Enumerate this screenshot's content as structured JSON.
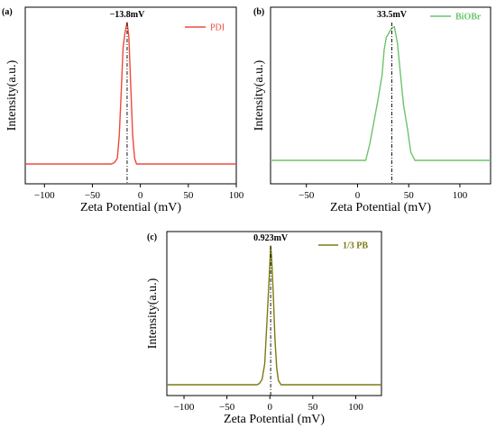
{
  "chart_data": [
    {
      "type": "line",
      "panel_label": "(a)",
      "xlabel": "Zeta Potential (mV)",
      "ylabel": "Intensity(a.u.)",
      "xlim": [
        -120,
        100
      ],
      "xticks": [
        -100,
        -50,
        0,
        50,
        100
      ],
      "xtick_labels": [
        "−100",
        "−50",
        "0",
        "50",
        "100"
      ],
      "ylim": [
        0,
        1.1
      ],
      "grid": false,
      "legend_position": "top-right",
      "color": "#f0483c",
      "series": [
        {
          "name": "PDI",
          "x": [
            -120,
            -30,
            -27,
            -24,
            -22,
            -20,
            -18,
            -16,
            -13.8,
            -12,
            -10,
            -8,
            -6,
            -4,
            0,
            100
          ],
          "y": [
            0.0,
            0.0,
            0.01,
            0.04,
            0.2,
            0.5,
            0.82,
            0.93,
            1.0,
            0.9,
            0.55,
            0.2,
            0.04,
            0.0,
            0.0,
            0.0
          ]
        }
      ],
      "annotation": {
        "text": "−13.8mV",
        "x": -13.8
      }
    },
    {
      "type": "line",
      "panel_label": "(b)",
      "xlabel": "Zeta Potential (mV)",
      "ylabel": "Intensity(a.u.)",
      "xlim": [
        -85,
        130
      ],
      "xticks": [
        -50,
        0,
        50,
        100
      ],
      "xtick_labels": [
        "−50",
        "0",
        "50",
        "100"
      ],
      "ylim": [
        0,
        1.1
      ],
      "grid": false,
      "legend_position": "top-right",
      "color": "#6cc46c",
      "series": [
        {
          "name": "BiOBr",
          "x": [
            -85,
            8,
            12,
            16,
            20,
            24,
            26,
            28,
            31,
            33.5,
            36,
            39,
            42,
            45,
            49,
            52,
            56,
            130
          ],
          "y": [
            0.0,
            0.0,
            0.12,
            0.28,
            0.44,
            0.62,
            0.8,
            0.89,
            0.93,
            0.96,
            0.97,
            0.85,
            0.62,
            0.4,
            0.22,
            0.06,
            0.0,
            0.0
          ]
        }
      ],
      "annotation": {
        "text": "33.5mV",
        "x": 33.5
      }
    },
    {
      "type": "line",
      "panel_label": "(c)",
      "xlabel": "Zeta Potential (mV)",
      "ylabel": "Intensity(a.u.)",
      "xlim": [
        -120,
        130
      ],
      "xticks": [
        -100,
        -50,
        0,
        50,
        100
      ],
      "xtick_labels": [
        "−100",
        "−50",
        "0",
        "50",
        "100"
      ],
      "ylim": [
        0,
        1.1
      ],
      "grid": false,
      "legend_position": "top-right",
      "color": "#7d7a10",
      "series": [
        {
          "name": "1/3 PB",
          "x": [
            -120,
            -15,
            -12,
            -9,
            -6,
            -3,
            0,
            0.923,
            2,
            4,
            6,
            8,
            10,
            13,
            130
          ],
          "y": [
            0.0,
            0.0,
            0.01,
            0.04,
            0.15,
            0.5,
            0.87,
            1.0,
            0.92,
            0.65,
            0.32,
            0.12,
            0.03,
            0.0,
            0.0
          ]
        }
      ],
      "annotation": {
        "text": "0.923mV",
        "x": 0.923
      }
    }
  ]
}
